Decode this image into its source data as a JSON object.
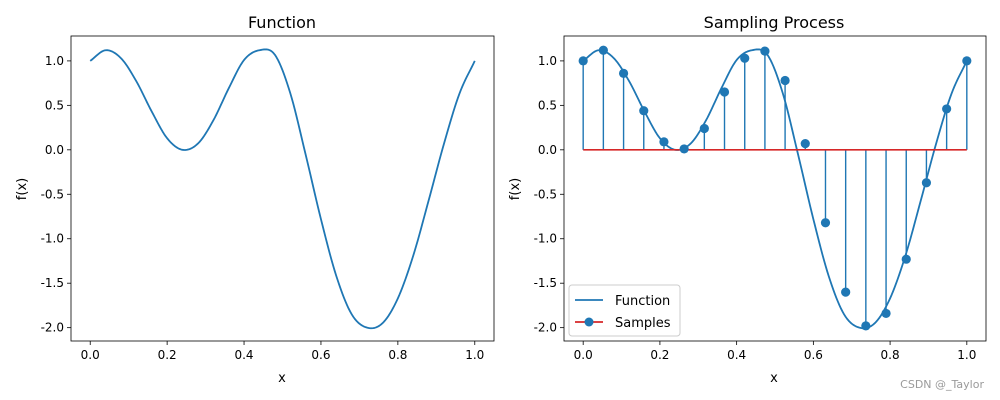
{
  "chart_data": [
    {
      "type": "line",
      "title": "Function",
      "xlabel": "x",
      "ylabel": "f(x)",
      "xlim": [
        -0.05,
        1.05
      ],
      "ylim": [
        -2.15,
        1.28
      ],
      "xticks": [
        0.0,
        0.2,
        0.4,
        0.6,
        0.8,
        1.0
      ],
      "xtick_labels": [
        "0.0",
        "0.2",
        "0.4",
        "0.6",
        "0.8",
        "1.0"
      ],
      "yticks": [
        1.0,
        0.5,
        0.0,
        -0.5,
        -1.0,
        -1.5,
        -2.0
      ],
      "ytick_labels": [
        "1.0",
        "0.5",
        "0.0",
        "-0.5",
        "-1.0",
        "-1.5",
        "-2.0"
      ],
      "series": [
        {
          "color": "#1f77b4",
          "x": [
            0.0,
            0.04,
            0.08,
            0.12,
            0.16,
            0.2,
            0.24,
            0.28,
            0.32,
            0.36,
            0.4,
            0.44,
            0.48,
            0.52,
            0.56,
            0.6,
            0.64,
            0.68,
            0.72,
            0.76,
            0.8,
            0.84,
            0.88,
            0.92,
            0.96,
            1.0
          ],
          "y": [
            1.0,
            1.12,
            1.03,
            0.77,
            0.43,
            0.13,
            0.0,
            0.07,
            0.33,
            0.69,
            1.01,
            1.12,
            1.07,
            0.64,
            -0.05,
            -0.78,
            -1.42,
            -1.85,
            -2.0,
            -1.95,
            -1.67,
            -1.19,
            -0.57,
            0.07,
            0.63,
            1.0
          ]
        }
      ]
    },
    {
      "type": "line",
      "title": "Sampling Process",
      "xlabel": "x",
      "ylabel": "f(x)",
      "xlim": [
        -0.05,
        1.05
      ],
      "ylim": [
        -2.15,
        1.28
      ],
      "xticks": [
        0.0,
        0.2,
        0.4,
        0.6,
        0.8,
        1.0
      ],
      "xtick_labels": [
        "0.0",
        "0.2",
        "0.4",
        "0.6",
        "0.8",
        "1.0"
      ],
      "yticks": [
        1.0,
        0.5,
        0.0,
        -0.5,
        -1.0,
        -1.5,
        -2.0
      ],
      "ytick_labels": [
        "1.0",
        "0.5",
        "0.0",
        "-0.5",
        "-1.0",
        "-1.5",
        "-2.0"
      ],
      "legend_position": "lower-left",
      "series": [
        {
          "name": "Function",
          "kind": "line",
          "color": "#1f77b4",
          "x": [
            0.0,
            0.04,
            0.08,
            0.12,
            0.16,
            0.2,
            0.24,
            0.28,
            0.32,
            0.36,
            0.4,
            0.44,
            0.48,
            0.52,
            0.56,
            0.6,
            0.64,
            0.68,
            0.72,
            0.76,
            0.8,
            0.84,
            0.88,
            0.92,
            0.96,
            1.0
          ],
          "y": [
            1.0,
            1.12,
            1.03,
            0.77,
            0.43,
            0.13,
            0.0,
            0.07,
            0.33,
            0.69,
            1.01,
            1.12,
            1.07,
            0.64,
            -0.05,
            -0.78,
            -1.42,
            -1.85,
            -2.0,
            -1.95,
            -1.67,
            -1.19,
            -0.57,
            0.07,
            0.63,
            1.0
          ]
        },
        {
          "name": "Samples",
          "kind": "stem",
          "color": "#1f77b4",
          "baseline_color": "#d62728",
          "baseline": 0.0,
          "x": [
            0.0,
            0.0526,
            0.1053,
            0.1579,
            0.2105,
            0.2632,
            0.3158,
            0.3684,
            0.4211,
            0.4737,
            0.5263,
            0.5789,
            0.6316,
            0.6842,
            0.7368,
            0.7895,
            0.8421,
            0.8947,
            0.9474,
            1.0
          ],
          "y": [
            1.0,
            1.12,
            0.86,
            0.44,
            0.09,
            0.01,
            0.24,
            0.65,
            1.03,
            1.11,
            0.78,
            0.07,
            -0.82,
            -1.6,
            -1.98,
            -1.84,
            -1.23,
            -0.37,
            0.46,
            1.0
          ]
        }
      ]
    }
  ],
  "watermark": "CSDN @_Taylor"
}
